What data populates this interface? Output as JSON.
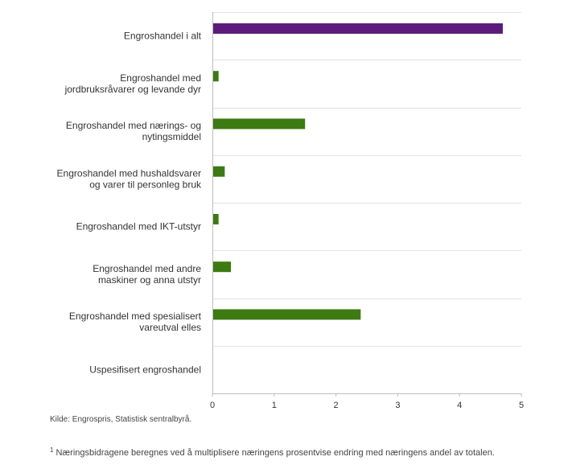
{
  "chart_data": {
    "type": "bar",
    "orientation": "horizontal",
    "categories": [
      [
        "Engroshandel i alt"
      ],
      [
        "Engroshandel med",
        "jordbruksråvarer og levande dyr"
      ],
      [
        "Engroshandel med nærings- og",
        "nytingsmiddel"
      ],
      [
        "Engroshandel med hushaldsvarer",
        "og varer til personleg bruk"
      ],
      [
        "Engroshandel med IKT-utstyr"
      ],
      [
        "Engroshandel med andre",
        "maskiner og anna utstyr"
      ],
      [
        "Engroshandel med spesialisert",
        "vareutval elles"
      ],
      [
        "Uspesifisert engroshandel"
      ]
    ],
    "values": [
      4.7,
      0.1,
      1.5,
      0.2,
      0.1,
      0.3,
      2.4,
      0
    ],
    "colors": [
      "#5c1a7a",
      "#3d7a12",
      "#3d7a12",
      "#3d7a12",
      "#3d7a12",
      "#3d7a12",
      "#3d7a12",
      "#3d7a12"
    ],
    "xlim": [
      0,
      5
    ],
    "xticks": [
      0,
      1,
      2,
      3,
      4,
      5
    ],
    "grid": "horizontal separators",
    "legend": "none",
    "title": "",
    "xlabel": "",
    "ylabel": ""
  },
  "source": "Kilde: Engrospris, Statistisk sentralbyrå.",
  "footnote": {
    "marker": "1",
    "text": "Næringsbidragene beregnes ved å multiplisere næringens prosentvise endring med næringens andel av totalen."
  }
}
